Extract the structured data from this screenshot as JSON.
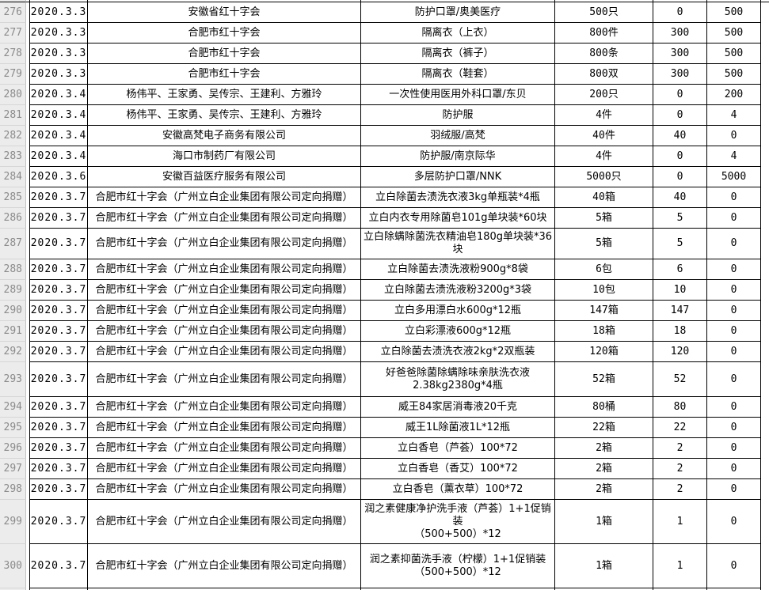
{
  "table": {
    "rows": [
      {
        "num": "276",
        "date": "2020.3.3",
        "donor": "安徽省红十字会",
        "item": "防护口罩/奥美医疗",
        "qty": "500只",
        "v1": "0",
        "v2": "500"
      },
      {
        "num": "277",
        "date": "2020.3.3",
        "donor": "合肥市红十字会",
        "item": "隔离衣（上衣）",
        "qty": "800件",
        "v1": "300",
        "v2": "500"
      },
      {
        "num": "278",
        "date": "2020.3.3",
        "donor": "合肥市红十字会",
        "item": "隔离衣（裤子）",
        "qty": "800条",
        "v1": "300",
        "v2": "500"
      },
      {
        "num": "279",
        "date": "2020.3.3",
        "donor": "合肥市红十字会",
        "item": "隔离衣（鞋套）",
        "qty": "800双",
        "v1": "300",
        "v2": "500"
      },
      {
        "num": "280",
        "date": "2020.3.4",
        "donor": "杨伟平、王家勇、吴传宗、王建利、方雅玲",
        "item": "一次性使用医用外科口罩/东贝",
        "qty": "200只",
        "v1": "0",
        "v2": "200"
      },
      {
        "num": "281",
        "date": "2020.3.4",
        "donor": "杨伟平、王家勇、吴传宗、王建利、方雅玲",
        "item": "防护服",
        "qty": "4件",
        "v1": "0",
        "v2": "4"
      },
      {
        "num": "282",
        "date": "2020.3.4",
        "donor": "安徽高梵电子商务有限公司",
        "item": "羽绒服/高梵",
        "qty": "40件",
        "v1": "40",
        "v2": "0"
      },
      {
        "num": "283",
        "date": "2020.3.4",
        "donor": "海口市制药厂有限公司",
        "item": "防护服/南京际华",
        "qty": "4件",
        "v1": "0",
        "v2": "4"
      },
      {
        "num": "284",
        "date": "2020.3.6",
        "donor": "安徽百益医疗服务有限公司",
        "item": "多层防护口罩/NNK",
        "qty": "5000只",
        "v1": "0",
        "v2": "5000"
      },
      {
        "num": "285",
        "date": "2020.3.7",
        "donor": "合肥市红十字会（广州立白企业集团有限公司定向捐赠）",
        "item": "立白除菌去渍洗衣液3kg单瓶装*4瓶",
        "qty": "40箱",
        "v1": "40",
        "v2": "0"
      },
      {
        "num": "286",
        "date": "2020.3.7",
        "donor": "合肥市红十字会（广州立白企业集团有限公司定向捐赠）",
        "item": "立白内衣专用除菌皂101g单块装*60块",
        "qty": "5箱",
        "v1": "5",
        "v2": "0"
      },
      {
        "num": "287",
        "date": "2020.3.7",
        "donor": "合肥市红十字会（广州立白企业集团有限公司定向捐赠）",
        "item": "立白除螨除菌洗衣精油皂180g单块装*36块",
        "qty": "5箱",
        "v1": "5",
        "v2": "0"
      },
      {
        "num": "288",
        "date": "2020.3.7",
        "donor": "合肥市红十字会（广州立白企业集团有限公司定向捐赠）",
        "item": "立白除菌去渍洗液粉900g*8袋",
        "qty": "6包",
        "v1": "6",
        "v2": "0"
      },
      {
        "num": "289",
        "date": "2020.3.7",
        "donor": "合肥市红十字会（广州立白企业集团有限公司定向捐赠）",
        "item": "立白除菌去渍洗液粉3200g*3袋",
        "qty": "10包",
        "v1": "10",
        "v2": "0"
      },
      {
        "num": "290",
        "date": "2020.3.7",
        "donor": "合肥市红十字会（广州立白企业集团有限公司定向捐赠）",
        "item": "立白多用漂白水600g*12瓶",
        "qty": "147箱",
        "v1": "147",
        "v2": "0"
      },
      {
        "num": "291",
        "date": "2020.3.7",
        "donor": "合肥市红十字会（广州立白企业集团有限公司定向捐赠）",
        "item": "立白彩漂液600g*12瓶",
        "qty": "18箱",
        "v1": "18",
        "v2": "0"
      },
      {
        "num": "292",
        "date": "2020.3.7",
        "donor": "合肥市红十字会（广州立白企业集团有限公司定向捐赠）",
        "item": "立白除菌去渍洗衣液2kg*2双瓶装",
        "qty": "120箱",
        "v1": "120",
        "v2": "0"
      },
      {
        "num": "293",
        "date": "2020.3.7",
        "donor": "合肥市红十字会（广州立白企业集团有限公司定向捐赠）",
        "item": "好爸爸除菌除螨除味亲肤洗衣液2.38kg2380g*4瓶",
        "qty": "52箱",
        "v1": "52",
        "v2": "0"
      },
      {
        "num": "294",
        "date": "2020.3.7",
        "donor": "合肥市红十字会（广州立白企业集团有限公司定向捐赠）",
        "item": "威王84家居消毒液20千克",
        "qty": "80桶",
        "v1": "80",
        "v2": "0"
      },
      {
        "num": "295",
        "date": "2020.3.7",
        "donor": "合肥市红十字会（广州立白企业集团有限公司定向捐赠）",
        "item": "威王1L除菌液1L*12瓶",
        "qty": "22箱",
        "v1": "22",
        "v2": "0"
      },
      {
        "num": "296",
        "date": "2020.3.7",
        "donor": "合肥市红十字会（广州立白企业集团有限公司定向捐赠）",
        "item": "立白香皂（芦荟）100*72",
        "qty": "2箱",
        "v1": "2",
        "v2": "0"
      },
      {
        "num": "297",
        "date": "2020.3.7",
        "donor": "合肥市红十字会（广州立白企业集团有限公司定向捐赠）",
        "item": "立白香皂（香艾）100*72",
        "qty": "2箱",
        "v1": "2",
        "v2": "0"
      },
      {
        "num": "298",
        "date": "2020.3.7",
        "donor": "合肥市红十字会（广州立白企业集团有限公司定向捐赠）",
        "item": "立白香皂（薰衣草）100*72",
        "qty": "2箱",
        "v1": "2",
        "v2": "0"
      },
      {
        "num": "299",
        "date": "2020.3.7",
        "donor": "合肥市红十字会（广州立白企业集团有限公司定向捐赠）",
        "item": "润之素健康净护洗手液（芦荟）1+1促销装\n（500+500）*12",
        "qty": "1箱",
        "v1": "1",
        "v2": "0"
      },
      {
        "num": "300",
        "date": "2020.3.7",
        "donor": "合肥市红十字会（广州立白企业集团有限公司定向捐赠）",
        "item": "润之素抑菌洗手液（柠檬）1+1促销装\n（500+500）*12",
        "qty": "1箱",
        "v1": "1",
        "v2": "0"
      }
    ]
  }
}
